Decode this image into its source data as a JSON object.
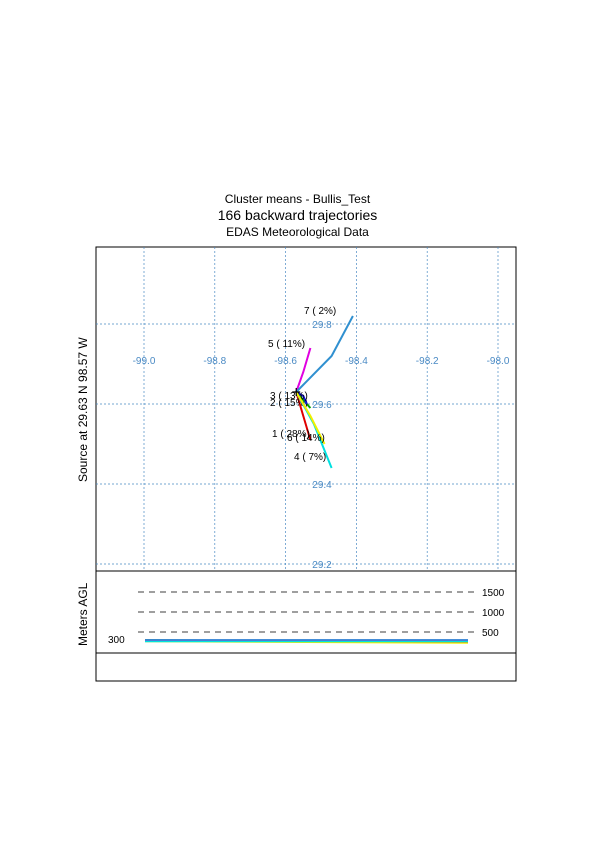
{
  "chart_data": {
    "type": "line",
    "title": "Cluster means - Bullis_Test",
    "subtitle": "166 backward trajectories",
    "subtitle2": "EDAS Meteorological Data",
    "ylabel": "Source    at   29.63 N   98.57 W",
    "lon_ticks": [
      "-99.0",
      "-98.8",
      "-98.6",
      "-98.4",
      "-98.2",
      "-98.0"
    ],
    "lat_ticks": [
      "29.8",
      "29.6",
      "29.4",
      "29.2"
    ],
    "source": {
      "lon": -98.57,
      "lat": 29.63
    },
    "clusters": [
      {
        "label": "1 ( 28%)",
        "color": "#e00000",
        "points": [
          [
            -98.57,
            29.63
          ],
          [
            -98.55,
            29.57
          ],
          [
            -98.53,
            29.51
          ]
        ]
      },
      {
        "label": "2 ( 15%)",
        "color": "#00a000",
        "points": [
          [
            -98.57,
            29.63
          ],
          [
            -98.55,
            29.61
          ],
          [
            -98.53,
            29.59
          ]
        ]
      },
      {
        "label": "3 ( 13%)",
        "color": "#1010e0",
        "points": [
          [
            -98.57,
            29.63
          ],
          [
            -98.55,
            29.62
          ],
          [
            -98.54,
            29.6
          ]
        ]
      },
      {
        "label": "4 (  7%)",
        "color": "#00e0e0",
        "points": [
          [
            -98.57,
            29.63
          ],
          [
            -98.52,
            29.55
          ],
          [
            -98.47,
            29.44
          ]
        ]
      },
      {
        "label": "5 ( 11%)",
        "color": "#e000e0",
        "points": [
          [
            -98.57,
            29.63
          ],
          [
            -98.55,
            29.68
          ],
          [
            -98.53,
            29.74
          ]
        ]
      },
      {
        "label": "6 ( 14%)",
        "color": "#f0f000",
        "points": [
          [
            -98.57,
            29.63
          ],
          [
            -98.53,
            29.57
          ],
          [
            -98.49,
            29.5
          ]
        ]
      },
      {
        "label": "7 (  2%)",
        "color": "#3090d0",
        "points": [
          [
            -98.57,
            29.63
          ],
          [
            -98.47,
            29.72
          ],
          [
            -98.41,
            29.82
          ]
        ]
      }
    ],
    "height_panel": {
      "ylabel": "Meters AGL",
      "levels": [
        "1500",
        "1000",
        "500"
      ],
      "start_label": "300"
    }
  }
}
